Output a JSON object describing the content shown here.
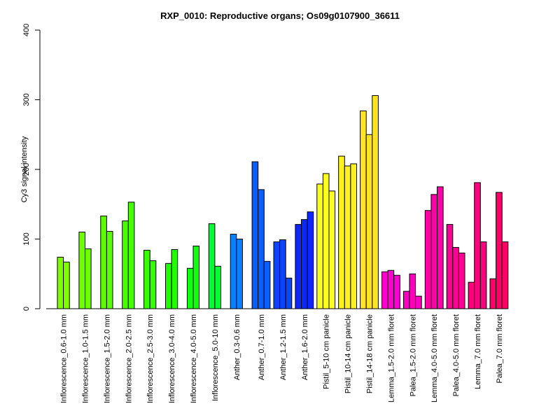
{
  "chart_data": {
    "type": "bar",
    "title": "RXP_0010: Reproductive organs; Os09g0107900_36611",
    "xlabel": "",
    "ylabel": "Cy3 signal intensity",
    "ylim": [
      0,
      400
    ],
    "yticks": [
      0,
      100,
      200,
      300,
      400
    ],
    "grid": false,
    "legend": "none",
    "groups": [
      {
        "label": "Inflorescence_0.6-1.0 mm",
        "color": "#80ff00",
        "values": [
          74,
          67
        ]
      },
      {
        "label": "Inflorescence_1.0-1.5 mm",
        "color": "#6fff00",
        "values": [
          110,
          86
        ]
      },
      {
        "label": "Inflorescence_1.5-2.0 mm",
        "color": "#5cff00",
        "values": [
          133,
          111
        ]
      },
      {
        "label": "Inflorescence_2.0-2.5 mm",
        "color": "#48ff00",
        "values": [
          126,
          153
        ]
      },
      {
        "label": "Inflorescence_2.5-3.0 mm",
        "color": "#35ff00",
        "values": [
          84,
          69
        ]
      },
      {
        "label": "Inflorescence_3.0-4.0 mm",
        "color": "#22ff00",
        "values": [
          65,
          85
        ]
      },
      {
        "label": "Inflorescence_4.0-5.0 mm",
        "color": "#10ff10",
        "values": [
          58,
          90
        ]
      },
      {
        "label": "Inflorescence_5.0-10 mm",
        "color": "#00ff33",
        "values": [
          122,
          61
        ]
      },
      {
        "label": "Anther_0.3-0.6 mm",
        "color": "#0a80ff",
        "values": [
          107,
          100
        ]
      },
      {
        "label": "Anther_0.7-1.0 mm",
        "color": "#0a60ff",
        "values": [
          211,
          171,
          68
        ]
      },
      {
        "label": "Anther_1.2-1.5 mm",
        "color": "#0a45ff",
        "values": [
          96,
          99,
          44
        ]
      },
      {
        "label": "Anther_1.6-2.0 mm",
        "color": "#0a28ff",
        "values": [
          121,
          128,
          139
        ]
      },
      {
        "label": "Pistil_5-10 cm panicle",
        "color": "#ffff1f",
        "values": [
          179,
          194,
          169
        ]
      },
      {
        "label": "Pistil_10-14 cm panicle",
        "color": "#fff21f",
        "values": [
          219,
          205,
          208
        ]
      },
      {
        "label": "Pistil_14-18 cm panicle",
        "color": "#ffe41f",
        "values": [
          284,
          250,
          306
        ]
      },
      {
        "label": "Lemma_1.5-2.0 mm floret",
        "color": "#ff00d0",
        "values": [
          53,
          55,
          48
        ]
      },
      {
        "label": "Palea_1.5-2.0 mm floret",
        "color": "#ff00c0",
        "values": [
          25,
          50,
          18
        ]
      },
      {
        "label": "Lemma_4.0-5.0 mm floret",
        "color": "#ff00a8",
        "values": [
          141,
          164,
          175
        ]
      },
      {
        "label": "Palea_4.0-5.0 mm floret",
        "color": "#ff0095",
        "values": [
          121,
          88,
          80
        ]
      },
      {
        "label": "Lemma_7.0 mm floret",
        "color": "#ff0080",
        "values": [
          38,
          181,
          96
        ]
      },
      {
        "label": "Palea_7.0 mm floret",
        "color": "#ff0068",
        "values": [
          43,
          167,
          96
        ]
      }
    ]
  }
}
